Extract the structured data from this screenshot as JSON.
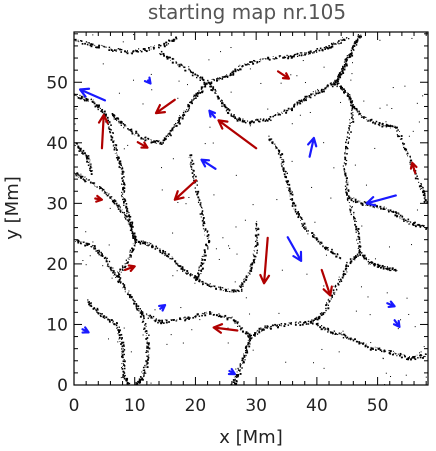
{
  "chart_data": {
    "type": "vector-field",
    "title": "starting map nr.105",
    "xlabel": "x [Mm]",
    "ylabel": "y [Mm]",
    "xlim": [
      0,
      58.3
    ],
    "ylim": [
      0,
      58.3
    ],
    "xticks": [
      0,
      10,
      20,
      30,
      40,
      50
    ],
    "yticks": [
      0,
      10,
      20,
      30,
      40,
      50
    ],
    "colors": {
      "red": "#b00000",
      "blue": "#1a1aff",
      "lanes": "#000000"
    },
    "red_arrows": [
      {
        "x0": 4.6,
        "y0": 39.1,
        "x1": 4.9,
        "y1": 44.6
      },
      {
        "x0": 16.6,
        "y0": 47.1,
        "x1": 13.5,
        "y1": 44.9
      },
      {
        "x0": 10.5,
        "y0": 40.1,
        "x1": 12.1,
        "y1": 39.2
      },
      {
        "x0": 30.0,
        "y0": 39.1,
        "x1": 23.8,
        "y1": 43.7
      },
      {
        "x0": 20.1,
        "y0": 33.8,
        "x1": 16.6,
        "y1": 30.6
      },
      {
        "x0": 3.5,
        "y0": 30.8,
        "x1": 4.6,
        "y1": 30.6
      },
      {
        "x0": 31.9,
        "y0": 24.3,
        "x1": 31.3,
        "y1": 16.8
      },
      {
        "x0": 40.8,
        "y0": 19.0,
        "x1": 42.2,
        "y1": 14.8
      },
      {
        "x0": 8.4,
        "y0": 19.0,
        "x1": 10.0,
        "y1": 19.6
      },
      {
        "x0": 26.9,
        "y0": 9.0,
        "x1": 23.0,
        "y1": 9.5
      },
      {
        "x0": 33.6,
        "y0": 51.8,
        "x1": 35.4,
        "y1": 50.6
      },
      {
        "x0": 56.2,
        "y0": 35.0,
        "x1": 55.7,
        "y1": 36.7
      }
    ],
    "blue_arrows": [
      {
        "x0": 5.1,
        "y0": 47.0,
        "x1": 1.0,
        "y1": 48.8
      },
      {
        "x0": 12.2,
        "y0": 50.3,
        "x1": 12.6,
        "y1": 49.8
      },
      {
        "x0": 23.2,
        "y0": 44.2,
        "x1": 22.3,
        "y1": 45.3
      },
      {
        "x0": 38.8,
        "y0": 37.7,
        "x1": 39.5,
        "y1": 40.8
      },
      {
        "x0": 23.3,
        "y0": 35.7,
        "x1": 21.0,
        "y1": 37.2
      },
      {
        "x0": 53.0,
        "y0": 31.3,
        "x1": 48.2,
        "y1": 30.0
      },
      {
        "x0": 35.2,
        "y0": 24.4,
        "x1": 37.4,
        "y1": 20.5
      },
      {
        "x0": 1.4,
        "y0": 9.2,
        "x1": 2.4,
        "y1": 8.7
      },
      {
        "x0": 14.2,
        "y0": 12.6,
        "x1": 15.0,
        "y1": 13.2
      },
      {
        "x0": 25.6,
        "y0": 2.3,
        "x1": 26.5,
        "y1": 1.8
      },
      {
        "x0": 51.6,
        "y0": 13.5,
        "x1": 52.8,
        "y1": 13.0
      },
      {
        "x0": 52.8,
        "y0": 10.7,
        "x1": 53.6,
        "y1": 9.6
      }
    ]
  }
}
